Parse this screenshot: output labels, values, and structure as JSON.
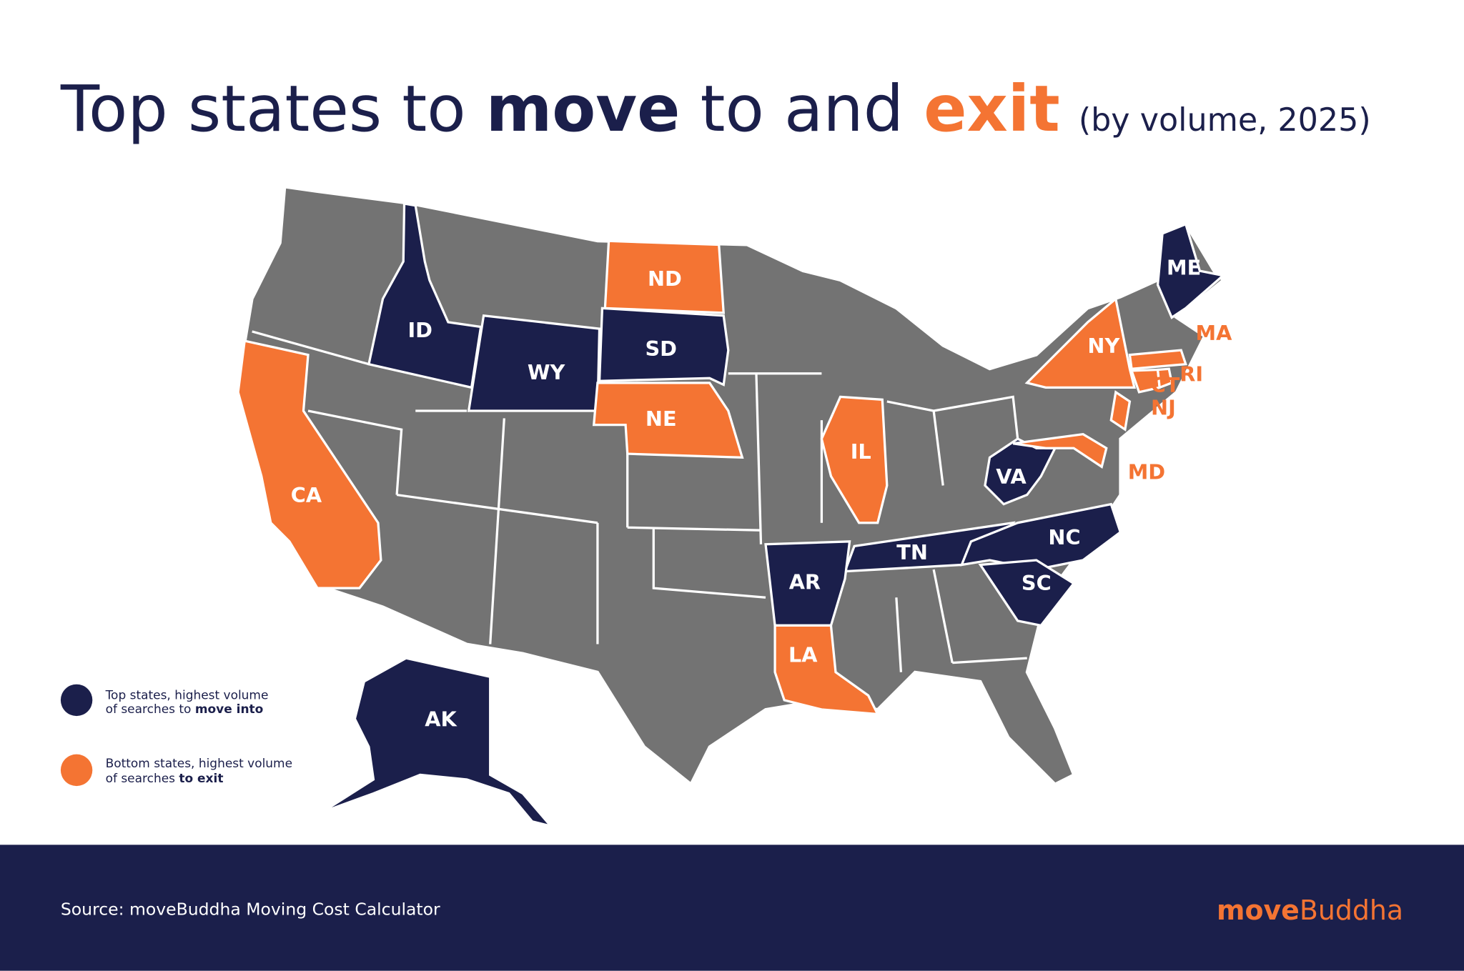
{
  "title": {
    "parts": [
      "Top states to ",
      "move",
      " to and ",
      "exit"
    ],
    "note": "(by volume, 2025)"
  },
  "map": {
    "move_into": {
      "color": "#1b1f4b",
      "legend": [
        "Top states, highest volume",
        "of searches to ",
        "move into"
      ],
      "states": [
        "ID",
        "WY",
        "SD",
        "ME",
        "VA",
        "TN",
        "NC",
        "SC",
        "AR",
        "AK"
      ]
    },
    "exit": {
      "color": "#f47433",
      "legend": [
        "Bottom states, highest volume",
        "of searches ",
        "to exit"
      ],
      "states": [
        "ND",
        "NE",
        "CA",
        "IL",
        "NY",
        "MA",
        "CT",
        "RI",
        "NJ",
        "MD",
        "LA"
      ]
    }
  },
  "footer": {
    "source": "Source: moveBuddha Moving Cost Calculator",
    "logo": [
      "move",
      "Buddha"
    ]
  }
}
